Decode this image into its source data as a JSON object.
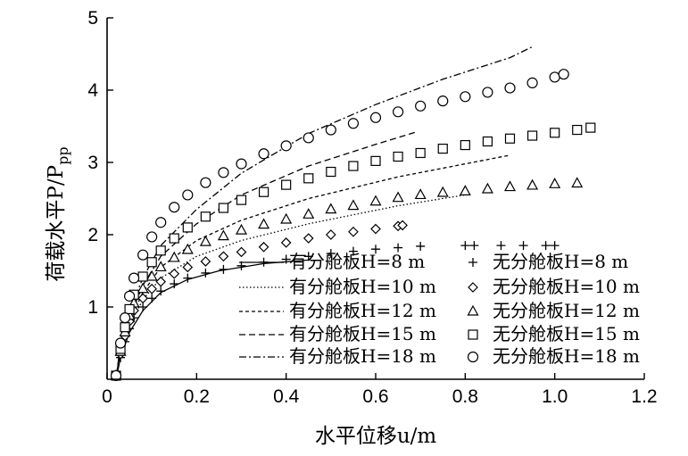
{
  "chart_data": {
    "type": "scatter",
    "xlabel": "水平位移u/m",
    "ylabel_main": "荷载水平P/P",
    "ylabel_sub": "pp",
    "xlim": [
      0,
      1.2
    ],
    "ylim": [
      0,
      5
    ],
    "xticks": [
      0,
      0.2,
      0.4,
      0.6,
      0.8,
      1.0,
      1.2
    ],
    "xtick_labels": [
      "0",
      "0.2",
      "0.4",
      "0.6",
      "0.8",
      "1.0",
      "1.2"
    ],
    "yticks": [
      1,
      2,
      3,
      4,
      5
    ],
    "ytick_labels": [
      "1",
      "2",
      "3",
      "4",
      "5"
    ],
    "legend_position": "lower-right",
    "series": [
      {
        "name": "有分舱板H=8 m",
        "style": "line",
        "dash": "solid",
        "x": [
          0.02,
          0.03,
          0.05,
          0.08,
          0.12,
          0.18,
          0.25,
          0.35,
          0.45
        ],
        "y": [
          0.0,
          0.3,
          0.65,
          0.95,
          1.2,
          1.38,
          1.5,
          1.6,
          1.65
        ]
      },
      {
        "name": "有分舱板H=10 m",
        "style": "line",
        "dash": "dotted",
        "x": [
          0.02,
          0.03,
          0.05,
          0.08,
          0.12,
          0.2,
          0.3,
          0.45,
          0.65,
          0.8
        ],
        "y": [
          0.0,
          0.35,
          0.75,
          1.1,
          1.4,
          1.7,
          1.92,
          2.15,
          2.4,
          2.55
        ]
      },
      {
        "name": "有分舱板H=12 m",
        "style": "line",
        "dash": "dashed-short",
        "x": [
          0.02,
          0.03,
          0.05,
          0.08,
          0.12,
          0.2,
          0.3,
          0.45,
          0.65,
          0.9
        ],
        "y": [
          0.0,
          0.4,
          0.8,
          1.2,
          1.55,
          1.92,
          2.2,
          2.5,
          2.8,
          3.1
        ]
      },
      {
        "name": "有分舱板H=15 m",
        "style": "line",
        "dash": "dashed",
        "x": [
          0.02,
          0.03,
          0.05,
          0.08,
          0.12,
          0.2,
          0.3,
          0.45,
          0.6,
          0.69
        ],
        "y": [
          0.0,
          0.45,
          0.85,
          1.3,
          1.7,
          2.15,
          2.55,
          2.95,
          3.25,
          3.42
        ]
      },
      {
        "name": "有分舱板H=18 m",
        "style": "line",
        "dash": "dashdot",
        "x": [
          0.02,
          0.03,
          0.05,
          0.08,
          0.12,
          0.2,
          0.3,
          0.45,
          0.6,
          0.75,
          0.9,
          0.95
        ],
        "y": [
          0.0,
          0.5,
          0.95,
          1.4,
          1.85,
          2.35,
          2.85,
          3.4,
          3.8,
          4.15,
          4.45,
          4.6
        ]
      },
      {
        "name": "无分舱板H=8 m",
        "style": "marker",
        "marker": "plus",
        "x": [
          0.02,
          0.03,
          0.04,
          0.05,
          0.06,
          0.08,
          0.1,
          0.12,
          0.15,
          0.18,
          0.22,
          0.26,
          0.3,
          0.35,
          0.4,
          0.45,
          0.5,
          0.55,
          0.6,
          0.65,
          0.7,
          0.8,
          0.82,
          0.88,
          0.93,
          0.98,
          1.0
        ],
        "y": [
          0.05,
          0.3,
          0.52,
          0.7,
          0.85,
          1.0,
          1.12,
          1.22,
          1.32,
          1.4,
          1.47,
          1.52,
          1.57,
          1.62,
          1.66,
          1.7,
          1.74,
          1.77,
          1.8,
          1.82,
          1.84,
          1.85,
          1.85,
          1.85,
          1.85,
          1.85,
          1.85
        ]
      },
      {
        "name": "无分舱板H=10 m",
        "style": "marker",
        "marker": "diamond",
        "x": [
          0.02,
          0.03,
          0.04,
          0.05,
          0.06,
          0.08,
          0.1,
          0.12,
          0.15,
          0.18,
          0.22,
          0.26,
          0.3,
          0.35,
          0.4,
          0.45,
          0.5,
          0.55,
          0.6,
          0.65,
          0.66
        ],
        "y": [
          0.05,
          0.35,
          0.6,
          0.8,
          0.95,
          1.12,
          1.25,
          1.35,
          1.46,
          1.55,
          1.63,
          1.7,
          1.76,
          1.83,
          1.89,
          1.95,
          2.0,
          2.04,
          2.08,
          2.12,
          2.13
        ]
      },
      {
        "name": "无分舱板H=12 m",
        "style": "marker",
        "marker": "triangle",
        "x": [
          0.02,
          0.03,
          0.04,
          0.05,
          0.06,
          0.08,
          0.1,
          0.12,
          0.15,
          0.18,
          0.22,
          0.26,
          0.3,
          0.35,
          0.4,
          0.45,
          0.5,
          0.55,
          0.6,
          0.65,
          0.7,
          0.75,
          0.8,
          0.85,
          0.9,
          0.95,
          1.0,
          1.05
        ],
        "y": [
          0.05,
          0.38,
          0.65,
          0.88,
          1.05,
          1.25,
          1.42,
          1.55,
          1.68,
          1.79,
          1.9,
          1.98,
          2.06,
          2.14,
          2.21,
          2.28,
          2.35,
          2.4,
          2.46,
          2.51,
          2.55,
          2.58,
          2.6,
          2.63,
          2.66,
          2.68,
          2.7,
          2.71
        ]
      },
      {
        "name": "无分舱板H=15 m",
        "style": "marker",
        "marker": "square",
        "x": [
          0.02,
          0.03,
          0.04,
          0.05,
          0.06,
          0.08,
          0.1,
          0.12,
          0.15,
          0.18,
          0.22,
          0.26,
          0.3,
          0.35,
          0.4,
          0.45,
          0.5,
          0.55,
          0.6,
          0.65,
          0.7,
          0.75,
          0.8,
          0.85,
          0.9,
          0.95,
          1.0,
          1.05,
          1.08
        ],
        "y": [
          0.05,
          0.42,
          0.72,
          0.97,
          1.17,
          1.42,
          1.62,
          1.78,
          1.95,
          2.1,
          2.25,
          2.37,
          2.48,
          2.59,
          2.69,
          2.78,
          2.87,
          2.95,
          3.02,
          3.08,
          3.13,
          3.19,
          3.24,
          3.29,
          3.33,
          3.37,
          3.41,
          3.45,
          3.48
        ]
      },
      {
        "name": "无分舱板H=18 m",
        "style": "marker",
        "marker": "circle",
        "x": [
          0.02,
          0.03,
          0.04,
          0.05,
          0.06,
          0.08,
          0.1,
          0.12,
          0.15,
          0.18,
          0.22,
          0.26,
          0.3,
          0.35,
          0.4,
          0.45,
          0.5,
          0.55,
          0.6,
          0.65,
          0.7,
          0.75,
          0.8,
          0.85,
          0.9,
          0.95,
          1.0,
          1.02
        ],
        "y": [
          0.05,
          0.5,
          0.85,
          1.15,
          1.4,
          1.72,
          1.97,
          2.17,
          2.38,
          2.55,
          2.72,
          2.86,
          2.98,
          3.12,
          3.23,
          3.34,
          3.45,
          3.54,
          3.62,
          3.7,
          3.78,
          3.85,
          3.91,
          3.97,
          4.03,
          4.1,
          4.18,
          4.22
        ]
      }
    ]
  }
}
